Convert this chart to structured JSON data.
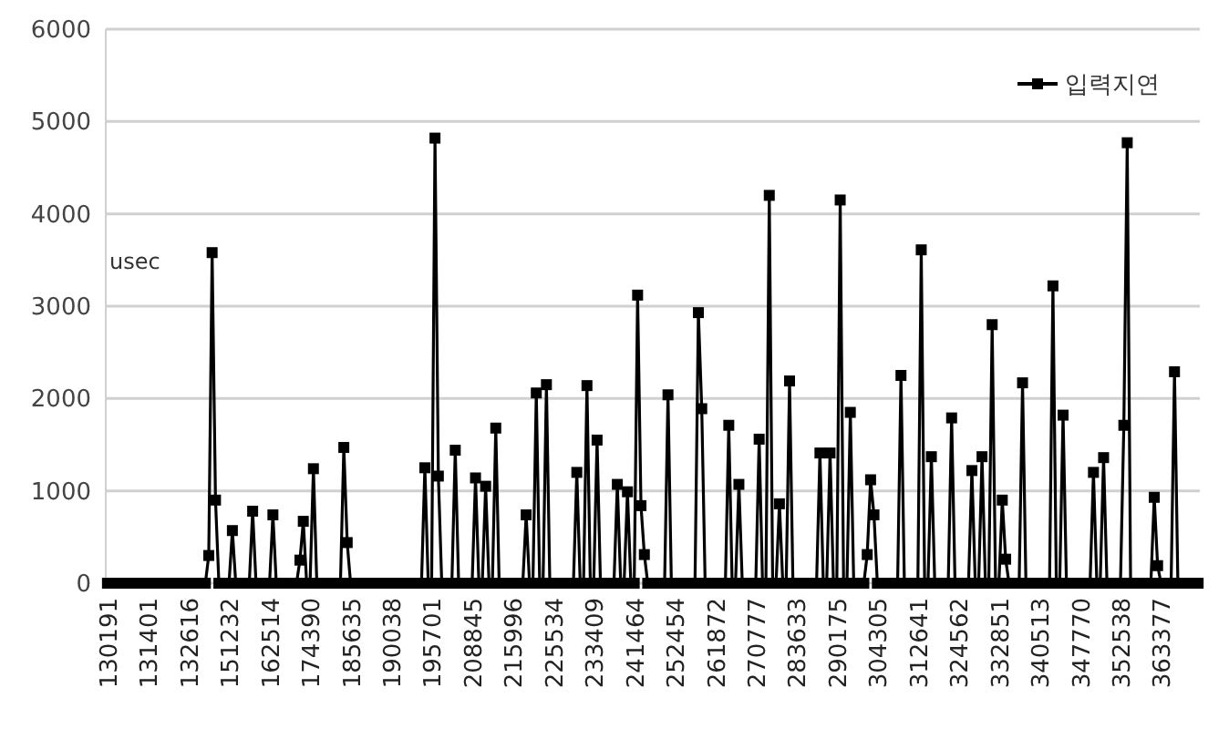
{
  "chart_data": {
    "type": "line",
    "ylabel": "usec",
    "categories": [
      "130191",
      null,
      null,
      null,
      null,
      null,
      null,
      null,
      null,
      null,
      null,
      null,
      "131401",
      null,
      null,
      null,
      null,
      null,
      null,
      null,
      null,
      null,
      null,
      null,
      "132616",
      null,
      null,
      null,
      null,
      null,
      null,
      null,
      null,
      null,
      null,
      null,
      "151232",
      null,
      null,
      null,
      null,
      null,
      null,
      null,
      null,
      null,
      null,
      null,
      "162514",
      null,
      null,
      null,
      null,
      null,
      null,
      null,
      null,
      null,
      null,
      null,
      "174390",
      null,
      null,
      null,
      null,
      null,
      null,
      null,
      null,
      null,
      null,
      null,
      "185635",
      null,
      null,
      null,
      null,
      null,
      null,
      null,
      null,
      null,
      null,
      null,
      "190038",
      null,
      null,
      null,
      null,
      null,
      null,
      null,
      null,
      null,
      null,
      null,
      "195701",
      null,
      null,
      null,
      null,
      null,
      null,
      null,
      null,
      null,
      null,
      null,
      "208845",
      null,
      null,
      null,
      null,
      null,
      null,
      null,
      null,
      null,
      null,
      null,
      "215996",
      null,
      null,
      null,
      null,
      null,
      null,
      null,
      null,
      null,
      null,
      null,
      "225534",
      null,
      null,
      null,
      null,
      null,
      null,
      null,
      null,
      null,
      null,
      null,
      "233409",
      null,
      null,
      null,
      null,
      null,
      null,
      null,
      null,
      null,
      null,
      null,
      "241464",
      null,
      null,
      null,
      null,
      null,
      null,
      null,
      null,
      null,
      null,
      null,
      "252454",
      null,
      null,
      null,
      null,
      null,
      null,
      null,
      null,
      null,
      null,
      null,
      "261872",
      null,
      null,
      null,
      null,
      null,
      null,
      null,
      null,
      null,
      null,
      null,
      "270777",
      null,
      null,
      null,
      null,
      null,
      null,
      null,
      null,
      null,
      null,
      null,
      "283633",
      null,
      null,
      null,
      null,
      null,
      null,
      null,
      null,
      null,
      null,
      null,
      "290175",
      null,
      null,
      null,
      null,
      null,
      null,
      null,
      null,
      null,
      null,
      null,
      "304305",
      null,
      null,
      null,
      null,
      null,
      null,
      null,
      null,
      null,
      null,
      null,
      "312641",
      null,
      null,
      null,
      null,
      null,
      null,
      null,
      null,
      null,
      null,
      null,
      "324562",
      null,
      null,
      null,
      null,
      null,
      null,
      null,
      null,
      null,
      null,
      null,
      "332851",
      null,
      null,
      null,
      null,
      null,
      null,
      null,
      null,
      null,
      null,
      null,
      "340513",
      null,
      null,
      null,
      null,
      null,
      null,
      null,
      null,
      null,
      null,
      null,
      "347770",
      null,
      null,
      null,
      null,
      null,
      null,
      null,
      null,
      null,
      null,
      null,
      "352538",
      null,
      null,
      null,
      null,
      null,
      null,
      null,
      null,
      null,
      null,
      null,
      "363377",
      null,
      null,
      null,
      null,
      null,
      null,
      null,
      null,
      null,
      null,
      null
    ],
    "series": [
      {
        "name": "입력지연",
        "color": "#000000",
        "values": [
          0,
          0,
          0,
          0,
          0,
          0,
          0,
          0,
          0,
          0,
          0,
          0,
          0,
          0,
          0,
          0,
          0,
          0,
          0,
          0,
          0,
          0,
          0,
          0,
          0,
          0,
          0,
          0,
          0,
          0,
          300,
          3580,
          900,
          0,
          0,
          0,
          0,
          570,
          0,
          0,
          0,
          0,
          0,
          780,
          0,
          0,
          0,
          0,
          0,
          740,
          0,
          0,
          0,
          0,
          0,
          0,
          0,
          250,
          670,
          0,
          0,
          1240,
          0,
          0,
          0,
          0,
          0,
          0,
          0,
          0,
          1470,
          440,
          0,
          0,
          0,
          0,
          0,
          0,
          0,
          0,
          0,
          0,
          0,
          0,
          0,
          0,
          0,
          0,
          0,
          0,
          0,
          0,
          0,
          0,
          1250,
          0,
          0,
          4820,
          1160,
          0,
          0,
          0,
          0,
          1440,
          0,
          0,
          0,
          0,
          0,
          1140,
          0,
          0,
          1050,
          0,
          0,
          1680,
          0,
          0,
          0,
          0,
          0,
          0,
          0,
          0,
          740,
          0,
          0,
          2060,
          0,
          0,
          2150,
          0,
          0,
          0,
          0,
          0,
          0,
          0,
          0,
          1200,
          0,
          0,
          2140,
          0,
          0,
          1550,
          0,
          0,
          0,
          0,
          0,
          1070,
          0,
          0,
          990,
          0,
          0,
          3120,
          840,
          310,
          0,
          0,
          0,
          0,
          0,
          0,
          2040,
          0,
          0,
          0,
          0,
          0,
          0,
          0,
          0,
          2930,
          1890,
          0,
          0,
          0,
          0,
          0,
          0,
          0,
          1710,
          0,
          0,
          1070,
          0,
          0,
          0,
          0,
          0,
          1560,
          0,
          0,
          4200,
          0,
          0,
          860,
          0,
          0,
          2190,
          0,
          0,
          0,
          0,
          0,
          0,
          0,
          0,
          1410,
          0,
          0,
          1410,
          0,
          0,
          4150,
          0,
          0,
          1850,
          0,
          0,
          0,
          0,
          310,
          1120,
          740,
          0,
          0,
          0,
          0,
          0,
          0,
          0,
          2250,
          0,
          0,
          0,
          0,
          0,
          3610,
          0,
          0,
          1370,
          0,
          0,
          0,
          0,
          0,
          1790,
          0,
          0,
          0,
          0,
          0,
          1220,
          0,
          0,
          1370,
          0,
          0,
          2800,
          0,
          0,
          900,
          260,
          0,
          0,
          0,
          0,
          2170,
          0,
          0,
          0,
          0,
          0,
          0,
          0,
          0,
          3220,
          0,
          0,
          1820,
          0,
          0,
          0,
          0,
          0,
          0,
          0,
          0,
          1200,
          0,
          0,
          1360,
          0,
          0,
          0,
          0,
          0,
          1710,
          4770,
          0,
          0,
          0,
          0,
          0,
          0,
          0,
          930,
          190,
          0,
          0,
          0,
          0,
          2290,
          0,
          0,
          0,
          0,
          0,
          0,
          0
        ]
      }
    ],
    "ylim": [
      0,
      6000
    ],
    "yticks": [
      0,
      1000,
      2000,
      3000,
      4000,
      5000,
      6000
    ],
    "grid": "y",
    "legend": "top right",
    "marker": "square",
    "line_style": "solid"
  }
}
